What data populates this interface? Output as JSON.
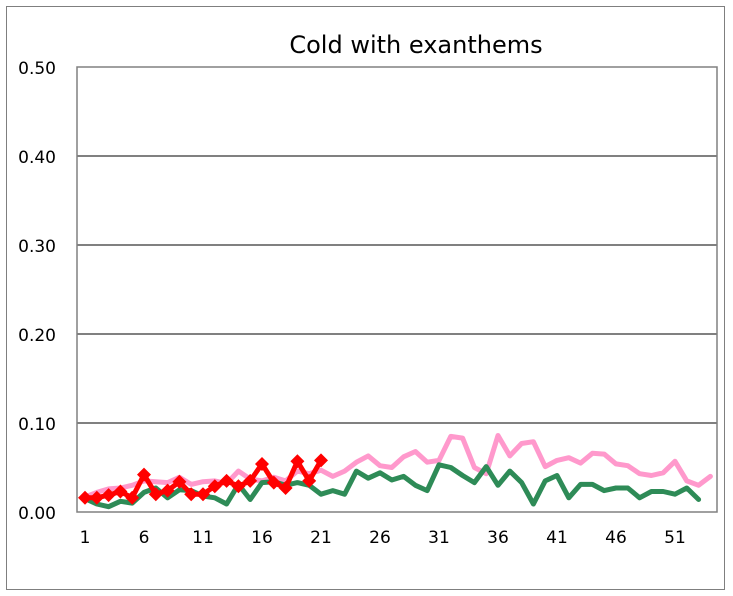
{
  "chart_data": {
    "type": "line",
    "title": "Cold with exanthems",
    "xlabel": "",
    "ylabel": "",
    "ylim": [
      0,
      0.5
    ],
    "y_ticks": [
      "0.00",
      "0.10",
      "0.20",
      "0.30",
      "0.40",
      "0.50"
    ],
    "xlim": [
      1,
      53
    ],
    "x_ticks": [
      "1",
      "6",
      "11",
      "16",
      "21",
      "26",
      "31",
      "36",
      "41",
      "46",
      "51"
    ],
    "grid": "horizontal",
    "legend": "none",
    "series": [
      {
        "color": "#ff99cc",
        "stroke_width": 5,
        "markers": false,
        "values": [
          0.017,
          0.022,
          0.026,
          0.027,
          0.03,
          0.035,
          0.034,
          0.033,
          0.039,
          0.031,
          0.034,
          0.035,
          0.032,
          0.046,
          0.037,
          0.035,
          0.039,
          0.035,
          0.046,
          0.043,
          0.047,
          0.04,
          0.046,
          0.056,
          0.063,
          0.052,
          0.05,
          0.062,
          0.068,
          0.056,
          0.058,
          0.085,
          0.083,
          0.05,
          0.043,
          0.086,
          0.063,
          0.077,
          0.079,
          0.051,
          0.058,
          0.061,
          0.055,
          0.066,
          0.065,
          0.054,
          0.052,
          0.043,
          0.041,
          0.044,
          0.057,
          0.035,
          0.03,
          0.04
        ]
      },
      {
        "color": "#2e8b57",
        "stroke_width": 5,
        "markers": false,
        "values": [
          0.015,
          0.009,
          0.006,
          0.012,
          0.01,
          0.022,
          0.027,
          0.016,
          0.025,
          0.024,
          0.018,
          0.016,
          0.009,
          0.031,
          0.014,
          0.033,
          0.034,
          0.03,
          0.033,
          0.03,
          0.02,
          0.024,
          0.02,
          0.046,
          0.038,
          0.044,
          0.036,
          0.04,
          0.03,
          0.024,
          0.053,
          0.05,
          0.041,
          0.033,
          0.051,
          0.03,
          0.046,
          0.033,
          0.009,
          0.035,
          0.041,
          0.016,
          0.031,
          0.031,
          0.024,
          0.027,
          0.027,
          0.016,
          0.023,
          0.023,
          0.02,
          0.027,
          0.014
        ]
      },
      {
        "color": "#ff0000",
        "stroke_width": 5,
        "markers": true,
        "values": [
          0.016,
          0.016,
          0.019,
          0.023,
          0.016,
          0.042,
          0.02,
          0.024,
          0.034,
          0.02,
          0.02,
          0.029,
          0.035,
          0.029,
          0.035,
          0.054,
          0.033,
          0.027,
          0.057,
          0.035,
          0.058
        ]
      }
    ]
  }
}
